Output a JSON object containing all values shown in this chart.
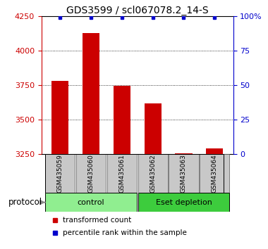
{
  "title": "GDS3599 / scl067078.2_14-S",
  "samples": [
    "GSM435059",
    "GSM435060",
    "GSM435061",
    "GSM435062",
    "GSM435063",
    "GSM435064"
  ],
  "transformed_counts": [
    3780,
    4130,
    3745,
    3620,
    3258,
    3295
  ],
  "percentile_ranks": [
    99,
    99,
    99,
    99,
    99,
    99
  ],
  "ylim_left": [
    3250,
    4250
  ],
  "ylim_right": [
    0,
    100
  ],
  "yticks_left": [
    3250,
    3500,
    3750,
    4000,
    4250
  ],
  "yticks_right": [
    0,
    25,
    50,
    75,
    100
  ],
  "groups": [
    {
      "label": "control",
      "samples": [
        0,
        1,
        2
      ],
      "color": "#90EE90"
    },
    {
      "label": "Eset depletion",
      "samples": [
        3,
        4,
        5
      ],
      "color": "#3DCC3D"
    }
  ],
  "bar_color": "#CC0000",
  "dot_color": "#0000CC",
  "bar_width": 0.55,
  "bg_color": "#FFFFFF",
  "sample_bg": "#C8C8C8",
  "legend_bar_label": "transformed count",
  "legend_dot_label": "percentile rank within the sample",
  "protocol_label": "protocol",
  "left_axis_color": "#CC0000",
  "right_axis_color": "#0000CC",
  "title_fontsize": 10,
  "tick_fontsize": 8,
  "sample_fontsize": 6.5,
  "group_fontsize": 8,
  "legend_fontsize": 7.5
}
